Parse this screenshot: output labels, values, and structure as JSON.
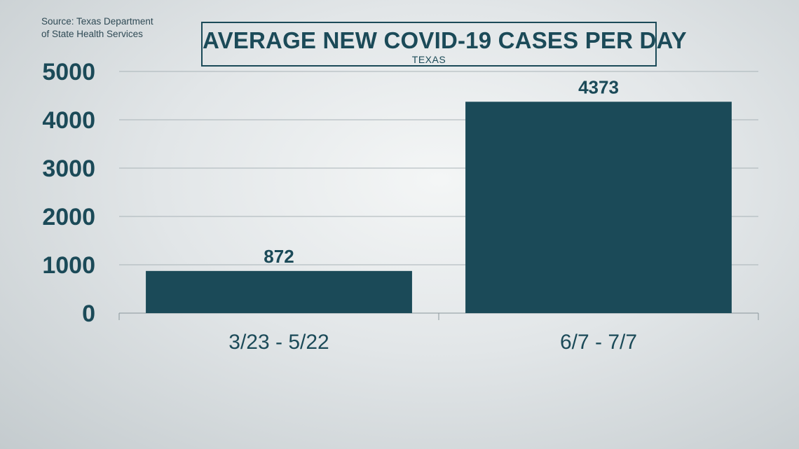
{
  "source": {
    "line1": "Source: Texas Department",
    "line2": "of State Health Services"
  },
  "chart_data": {
    "type": "bar",
    "title": "AVERAGE NEW COVID-19 CASES PER DAY",
    "subtitle": "TEXAS",
    "categories": [
      "3/23 - 5/22",
      "6/7 - 7/7"
    ],
    "values": [
      872,
      4373
    ],
    "data_labels": [
      "872",
      "4373"
    ],
    "ylim": [
      0,
      5000
    ],
    "yticks": [
      0,
      1000,
      2000,
      3000,
      4000,
      5000
    ],
    "grid": true,
    "bar_color": "#1b4a58",
    "xlabel": "",
    "ylabel": ""
  }
}
